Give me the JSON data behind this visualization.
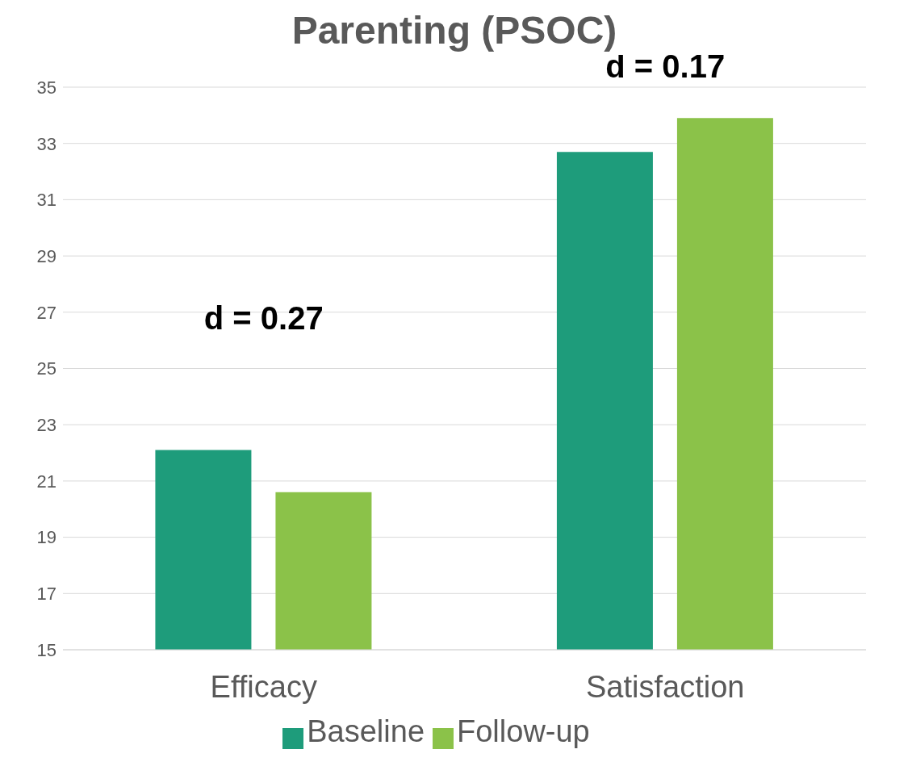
{
  "chart_data": {
    "type": "bar",
    "title": "Parenting (PSOC)",
    "categories": [
      "Efficacy",
      "Satisfaction"
    ],
    "series": [
      {
        "name": "Baseline",
        "color": "#1e9c7b",
        "values": [
          22.1,
          32.7
        ]
      },
      {
        "name": "Follow-up",
        "color": "#8bc249",
        "values": [
          20.6,
          33.9
        ]
      }
    ],
    "ylim": [
      15,
      35
    ],
    "yticks": [
      15,
      17,
      19,
      21,
      23,
      25,
      27,
      29,
      31,
      33,
      35
    ],
    "grid": "y",
    "legend": "bottom",
    "annotations": [
      "d = 0.27",
      "d = 0.17"
    ]
  }
}
